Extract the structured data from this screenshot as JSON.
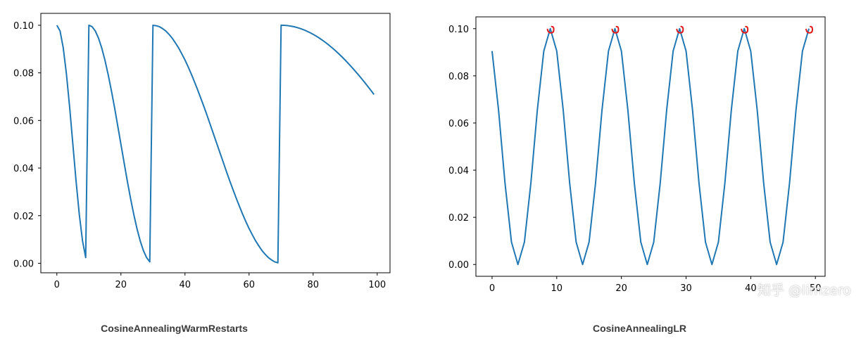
{
  "chart_data": [
    {
      "type": "line",
      "caption": "CosineAnnealingWarmRestarts",
      "xlim": [
        -5,
        104
      ],
      "ylim": [
        -0.004,
        0.105
      ],
      "xticks": [
        0,
        20,
        40,
        60,
        80,
        100
      ],
      "yticks": [
        0.0,
        0.02,
        0.04,
        0.06,
        0.08,
        0.1
      ],
      "xtick_labels": [
        "0",
        "20",
        "40",
        "60",
        "80",
        "100"
      ],
      "ytick_labels": [
        "0.00",
        "0.02",
        "0.04",
        "0.06",
        "0.08",
        "0.10"
      ],
      "grid": false,
      "color": "#1f77b4",
      "series": [
        {
          "x": [
            0,
            1,
            2,
            3,
            4,
            5,
            6,
            7,
            8,
            9,
            10,
            11,
            12,
            13,
            14,
            15,
            16,
            17,
            18,
            19,
            20,
            21,
            22,
            23,
            24,
            25,
            26,
            27,
            28,
            29,
            30,
            31,
            32,
            33,
            34,
            35,
            36,
            37,
            38,
            39,
            40,
            41,
            42,
            43,
            44,
            45,
            46,
            47,
            48,
            49,
            50,
            51,
            52,
            53,
            54,
            55,
            56,
            57,
            58,
            59,
            60,
            61,
            62,
            63,
            64,
            65,
            66,
            67,
            68,
            69,
            70,
            71,
            72,
            73,
            74,
            75,
            76,
            77,
            78,
            79,
            80,
            81,
            82,
            83,
            84,
            85,
            86,
            87,
            88,
            89,
            90,
            91,
            92,
            93,
            94,
            95,
            96,
            97,
            98,
            99
          ],
          "y": [
            0.1,
            0.0976,
            0.0905,
            0.0794,
            0.0655,
            0.05,
            0.0345,
            0.0206,
            0.0095,
            0.0024,
            0.1,
            0.0994,
            0.0976,
            0.0946,
            0.0905,
            0.0854,
            0.0794,
            0.0727,
            0.0655,
            0.0578,
            0.05,
            0.0422,
            0.0345,
            0.0273,
            0.0206,
            0.0146,
            0.0095,
            0.0054,
            0.0024,
            0.0006,
            0.1,
            0.0998,
            0.0994,
            0.0986,
            0.0976,
            0.0962,
            0.0946,
            0.0926,
            0.0905,
            0.088,
            0.0854,
            0.0825,
            0.0794,
            0.0761,
            0.0727,
            0.0691,
            0.0655,
            0.0617,
            0.0578,
            0.0539,
            0.05,
            0.0461,
            0.0422,
            0.0383,
            0.0345,
            0.0309,
            0.0273,
            0.0239,
            0.0206,
            0.0175,
            0.0146,
            0.012,
            0.0095,
            0.0074,
            0.0054,
            0.0038,
            0.0024,
            0.0014,
            0.0006,
            0.0002,
            0.1,
            0.09996,
            0.09985,
            0.09965,
            0.09938,
            0.09904,
            0.09862,
            0.09813,
            0.09755,
            0.09691,
            0.09619,
            0.09541,
            0.09455,
            0.09362,
            0.09263,
            0.09157,
            0.09045,
            0.08927,
            0.08802,
            0.08672,
            0.08536,
            0.08394,
            0.08247,
            0.08095,
            0.07939,
            0.07778,
            0.07612,
            0.07443,
            0.0727,
            0.07093
          ]
        }
      ]
    },
    {
      "type": "line",
      "caption": "CosineAnnealingLR",
      "xlim": [
        -2.5,
        51.5
      ],
      "ylim": [
        -0.005,
        0.105
      ],
      "xticks": [
        0,
        10,
        20,
        30,
        40,
        50
      ],
      "yticks": [
        0.0,
        0.02,
        0.04,
        0.06,
        0.08,
        0.1
      ],
      "xtick_labels": [
        "0",
        "10",
        "20",
        "30",
        "40",
        "50"
      ],
      "ytick_labels": [
        "0.00",
        "0.02",
        "0.04",
        "0.06",
        "0.08",
        "0.10"
      ],
      "grid": false,
      "color": "#1f77b4",
      "annotation_color": "#e01919",
      "series": [
        {
          "x": [
            0,
            1,
            2,
            3,
            4,
            5,
            6,
            7,
            8,
            9,
            10,
            11,
            12,
            13,
            14,
            15,
            16,
            17,
            18,
            19,
            20,
            21,
            22,
            23,
            24,
            25,
            26,
            27,
            28,
            29,
            30,
            31,
            32,
            33,
            34,
            35,
            36,
            37,
            38,
            39,
            40,
            41,
            42,
            43,
            44,
            45,
            46,
            47,
            48,
            49
          ],
          "y": [
            0.0905,
            0.0655,
            0.0345,
            0.0095,
            0.0,
            0.0095,
            0.0345,
            0.0655,
            0.0905,
            0.1,
            0.0905,
            0.0655,
            0.0345,
            0.0095,
            0.0,
            0.0095,
            0.0345,
            0.0655,
            0.0905,
            0.1,
            0.0905,
            0.0655,
            0.0345,
            0.0095,
            0.0,
            0.0095,
            0.0345,
            0.0655,
            0.0905,
            0.1,
            0.0905,
            0.0655,
            0.0345,
            0.0095,
            0.0,
            0.0095,
            0.0345,
            0.0655,
            0.0905,
            0.1,
            0.0905,
            0.0655,
            0.0345,
            0.0095,
            0.0,
            0.0095,
            0.0345,
            0.0655,
            0.0905,
            0.1
          ]
        }
      ],
      "red_marks_at_x": [
        9,
        19,
        29,
        39,
        49
      ]
    }
  ],
  "captions": {
    "left": "CosineAnnealingWarmRestarts",
    "right": "CosineAnnealingLR"
  },
  "watermark": "知乎 @limzero"
}
